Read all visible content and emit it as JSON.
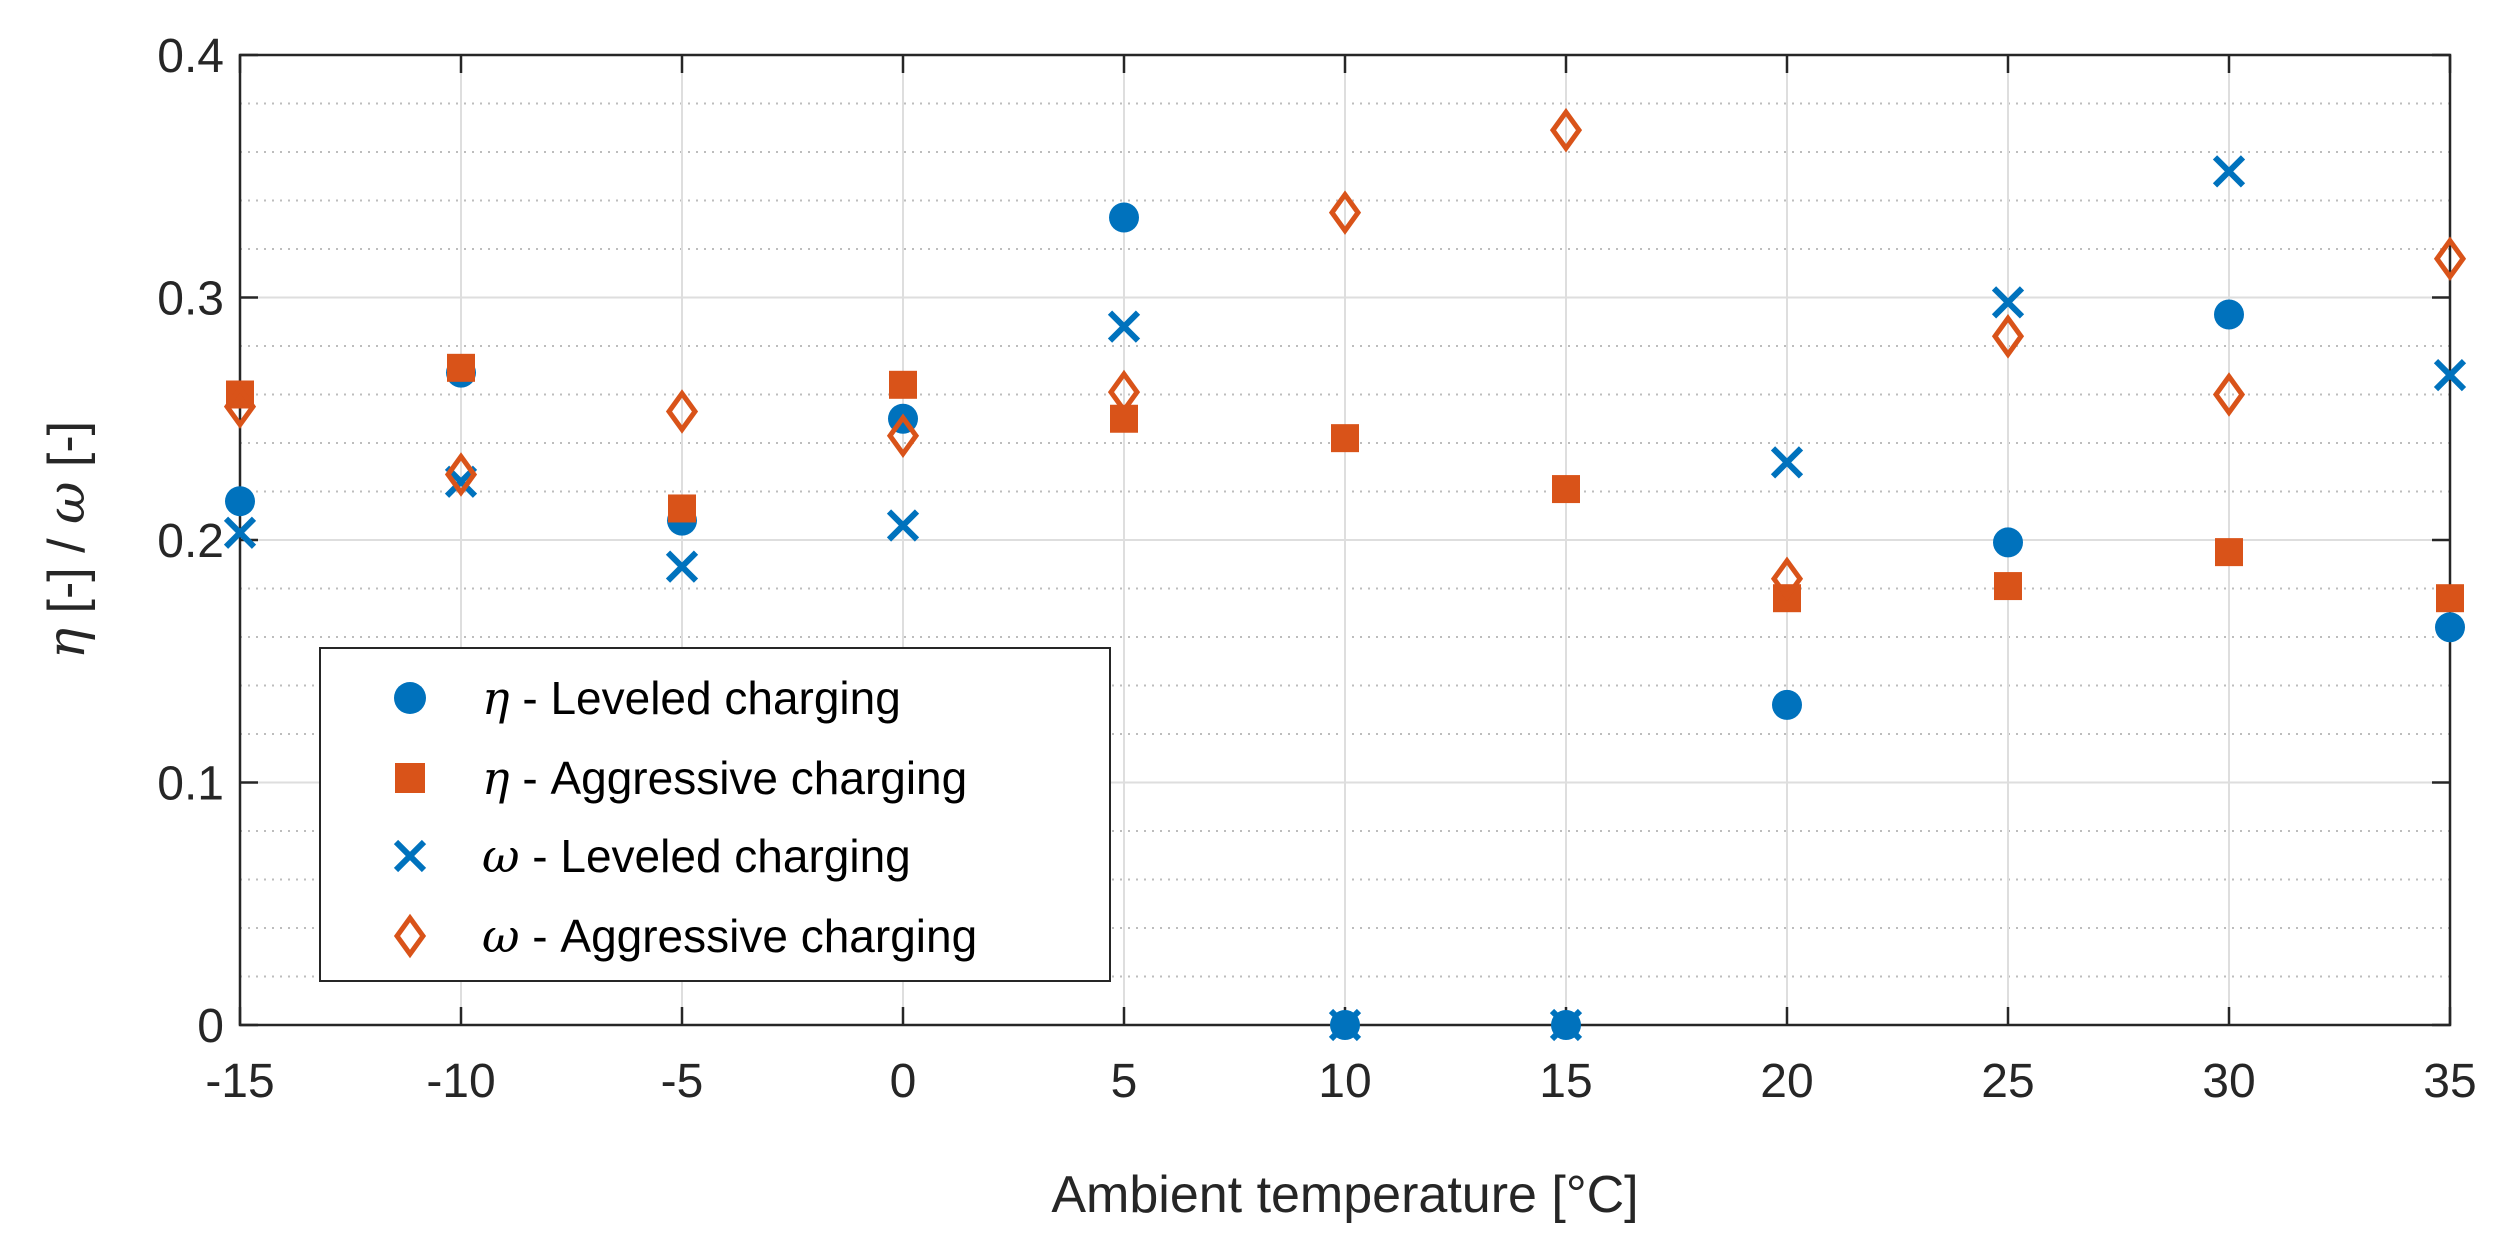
{
  "chart_data": {
    "type": "scatter",
    "title": "",
    "xlabel": "Ambient temperature [°C]",
    "ylabel_parts": [
      "η",
      " [-] / ",
      "ω",
      " [-]"
    ],
    "xlim": [
      -15,
      35
    ],
    "ylim": [
      0,
      0.4
    ],
    "xticks": [
      -15,
      -10,
      -5,
      0,
      5,
      10,
      15,
      20,
      25,
      30,
      35
    ],
    "xtick_labels": [
      "-15",
      "-10",
      "-5",
      "0",
      "5",
      "10",
      "15",
      "20",
      "25",
      "30",
      "35"
    ],
    "yticks": [
      0,
      0.1,
      0.2,
      0.3,
      0.4
    ],
    "ytick_labels": [
      "0",
      "0.1",
      "0.2",
      "0.3",
      "0.4"
    ],
    "grid": "major solid, minor dotted",
    "legend_position": "lower-left",
    "series": [
      {
        "symbol": "η",
        "name": " - Leveled charging",
        "marker": "circle",
        "color": "#0072BD",
        "points": [
          [
            -15,
            0.216
          ],
          [
            -10,
            0.269
          ],
          [
            -5,
            0.208
          ],
          [
            0,
            0.25
          ],
          [
            5,
            0.333
          ],
          [
            10,
            0.0
          ],
          [
            15,
            0.0
          ],
          [
            20,
            0.132
          ],
          [
            25,
            0.199
          ],
          [
            30,
            0.293
          ],
          [
            35,
            0.164
          ]
        ]
      },
      {
        "symbol": "η",
        "name": " - Aggressive charging",
        "marker": "square",
        "color": "#D95319",
        "points": [
          [
            -15,
            0.26
          ],
          [
            -10,
            0.271
          ],
          [
            -5,
            0.213
          ],
          [
            0,
            0.264
          ],
          [
            5,
            0.25
          ],
          [
            10,
            0.242
          ],
          [
            15,
            0.221
          ],
          [
            20,
            0.176
          ],
          [
            25,
            0.181
          ],
          [
            30,
            0.195
          ],
          [
            35,
            0.176
          ]
        ]
      },
      {
        "symbol": "ω",
        "name": " - Leveled charging",
        "marker": "x",
        "color": "#0072BD",
        "points": [
          [
            -15,
            0.203
          ],
          [
            -10,
            0.224
          ],
          [
            -5,
            0.189
          ],
          [
            0,
            0.206
          ],
          [
            5,
            0.288
          ],
          [
            10,
            0.0
          ],
          [
            15,
            0.0
          ],
          [
            20,
            0.232
          ],
          [
            25,
            0.298
          ],
          [
            30,
            0.352
          ],
          [
            35,
            0.268
          ]
        ]
      },
      {
        "symbol": "ω",
        "name": " - Aggressive charging",
        "marker": "diamond",
        "color": "#D95319",
        "points": [
          [
            -15,
            0.255
          ],
          [
            -10,
            0.227
          ],
          [
            -5,
            0.253
          ],
          [
            0,
            0.243
          ],
          [
            5,
            0.261
          ],
          [
            10,
            0.335
          ],
          [
            15,
            0.369
          ],
          [
            20,
            0.184
          ],
          [
            25,
            0.284
          ],
          [
            30,
            0.26
          ],
          [
            35,
            0.316
          ]
        ]
      }
    ]
  }
}
